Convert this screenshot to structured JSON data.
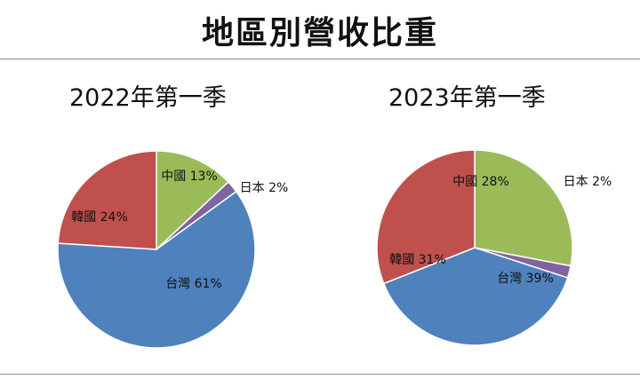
{
  "page": {
    "title": "地區別營收比重"
  },
  "chart_data": [
    {
      "type": "pie",
      "title": "2022年第一季",
      "categories": [
        "中國",
        "日本",
        "台灣",
        "韓國"
      ],
      "values": [
        13,
        2,
        61,
        24
      ],
      "labels": [
        "中國 13%",
        "日本 2%",
        "台灣 61%",
        "韓國 24%"
      ],
      "colors": [
        "#9bbb59",
        "#8064a2",
        "#4f81bd",
        "#c0504d"
      ],
      "start_angle_deg": 0,
      "direction": "clockwise",
      "legend": "none",
      "data_labels": true
    },
    {
      "type": "pie",
      "title": "2023年第一季",
      "categories": [
        "中國",
        "日本",
        "台灣",
        "韓國"
      ],
      "values": [
        28,
        2,
        39,
        31
      ],
      "labels": [
        "中國 28%",
        "日本 2%",
        "台灣 39%",
        "韓國 31%"
      ],
      "colors": [
        "#9bbb59",
        "#8064a2",
        "#4f81bd",
        "#c0504d"
      ],
      "start_angle_deg": 0,
      "direction": "clockwise",
      "legend": "none",
      "data_labels": true
    }
  ]
}
